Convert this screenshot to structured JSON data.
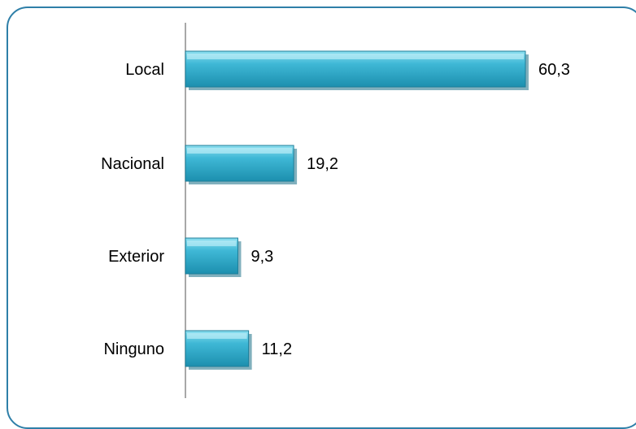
{
  "chart_data": {
    "type": "bar",
    "orientation": "horizontal",
    "title": "",
    "xlabel": "",
    "ylabel": "",
    "categories": [
      "Local",
      "Nacional",
      "Exterior",
      "Ninguno"
    ],
    "values": [
      60.3,
      19.2,
      9.3,
      11.2
    ],
    "value_labels": [
      "60,3",
      "19,2",
      "9,3",
      "11,2"
    ],
    "xlim": [
      0,
      70
    ],
    "grid": false,
    "legend": "none",
    "bar_color": "#3fb8d6",
    "frame_color": "#2e7fa8"
  }
}
